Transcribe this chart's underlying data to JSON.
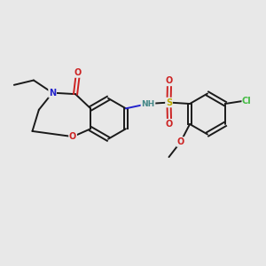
{
  "background_color": "#e8e8e8",
  "bond_color": "#1a1a1a",
  "figsize": [
    3.0,
    3.0
  ],
  "dpi": 100,
  "N_color": "#2222cc",
  "O_color": "#cc2222",
  "S_color": "#bbaa00",
  "Cl_color": "#44bb44",
  "H_color": "#448888",
  "lw": 1.4,
  "fs": 7.0,
  "xlim": [
    0,
    10
  ],
  "ylim": [
    0,
    10
  ]
}
